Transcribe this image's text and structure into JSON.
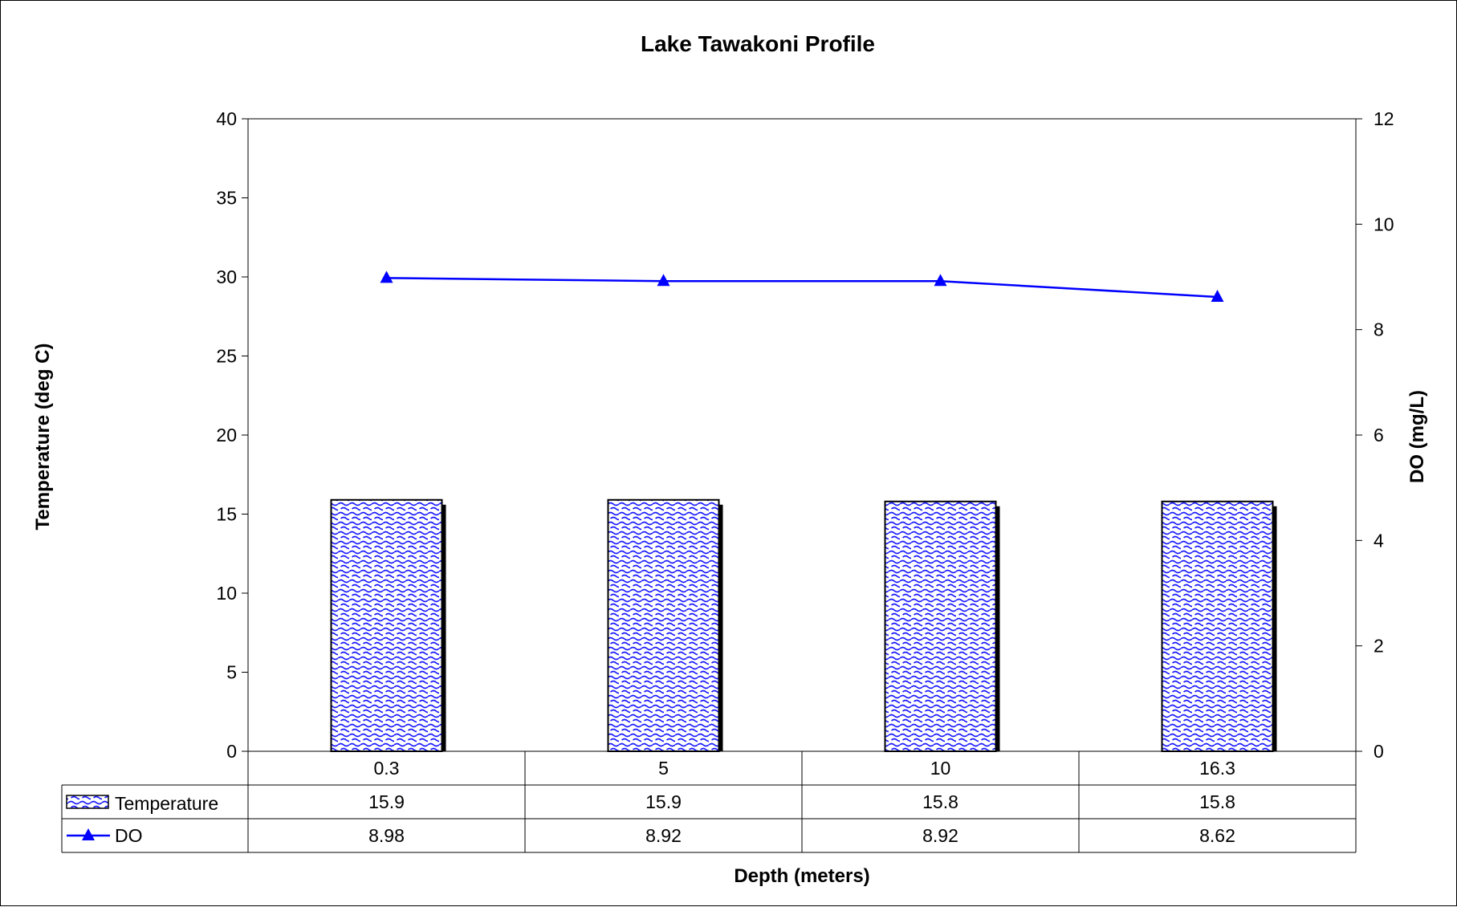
{
  "chart_data": {
    "type": "bar",
    "title": "Lake Tawakoni Profile",
    "xlabel": "Depth (meters)",
    "ylabel": "Temperature (deg C)",
    "y2label": "DO (mg/L)",
    "categories": [
      "0.3",
      "5",
      "10",
      "16.3"
    ],
    "ylim": [
      0,
      40
    ],
    "y_ticks": [
      "0",
      "5",
      "10",
      "15",
      "20",
      "25",
      "30",
      "35",
      "40"
    ],
    "y2lim": [
      0,
      12
    ],
    "y2_ticks": [
      "0",
      "2",
      "4",
      "6",
      "8",
      "10",
      "12"
    ],
    "grid": false,
    "legend": "data-table",
    "series": [
      {
        "name": "Temperature",
        "type": "bar",
        "axis": "left",
        "values": [
          15.9,
          15.9,
          15.8,
          15.8
        ],
        "labels": [
          "15.9",
          "15.9",
          "15.8",
          "15.8"
        ],
        "color": "#1a1aff"
      },
      {
        "name": "DO",
        "type": "line",
        "axis": "right",
        "marker": "triangle",
        "values": [
          8.98,
          8.92,
          8.92,
          8.62
        ],
        "labels": [
          "8.98",
          "8.92",
          "8.92",
          "8.62"
        ],
        "color": "#0000ff"
      }
    ]
  }
}
